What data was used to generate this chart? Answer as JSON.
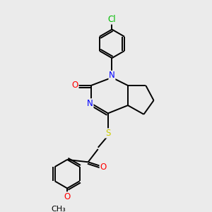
{
  "bg_color": "#ebebeb",
  "bond_color": "#000000",
  "atom_colors": {
    "N": "#0000ff",
    "O": "#ff0000",
    "S": "#cccc00",
    "Cl": "#00bb00",
    "C": "#000000"
  },
  "font_size": 8.5,
  "lw": 1.4
}
